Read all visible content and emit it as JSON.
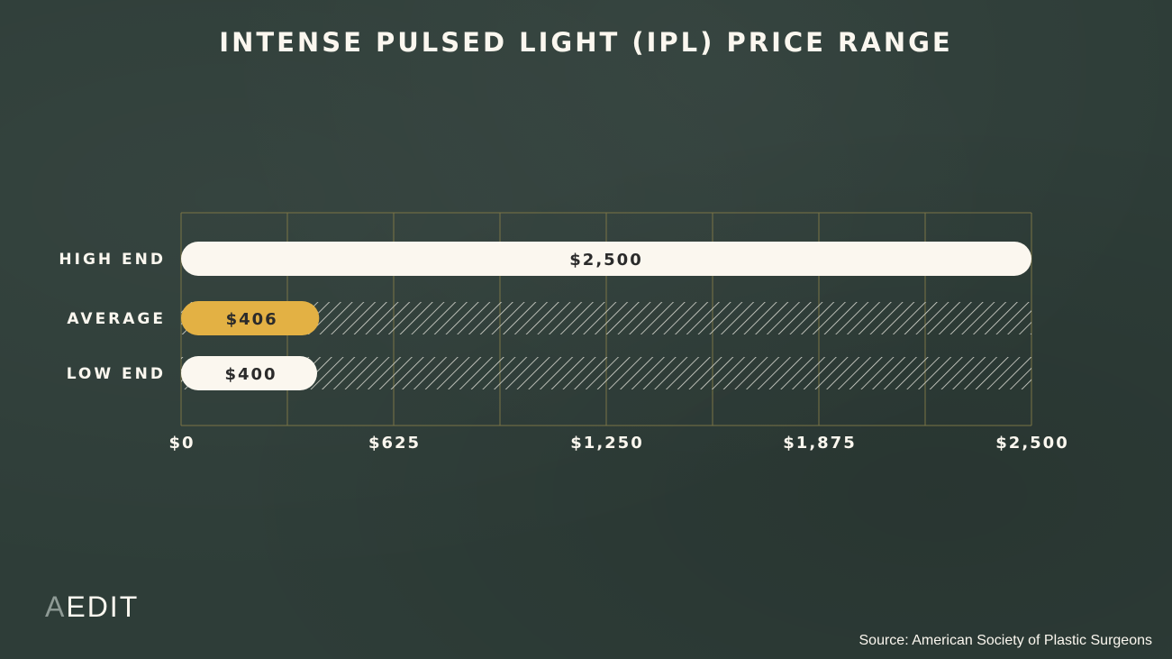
{
  "chart_data": {
    "type": "bar",
    "orientation": "horizontal",
    "title": "INTENSE PULSED LIGHT (IPL) PRICE RANGE",
    "categories": [
      "HIGH END",
      "AVERAGE",
      "LOW END"
    ],
    "values": [
      2500,
      406,
      400
    ],
    "value_labels": [
      "$2,500",
      "$406",
      "$400"
    ],
    "xlim": [
      0,
      2500
    ],
    "x_ticks": [
      0,
      625,
      1250,
      1875,
      2500
    ],
    "x_tick_labels": [
      "$0",
      "$625",
      "$1,250",
      "$1,875",
      "$2,500"
    ],
    "grid": true,
    "xlabel": "",
    "ylabel": "",
    "colors": {
      "bar_default": "#fbf7ef",
      "bar_highlight": "#e3b144",
      "grid": "#7a7446",
      "hatch": "#dcdcd4",
      "background": "#2e3d38"
    },
    "highlight_index": 1
  },
  "brand": {
    "prefix": "A",
    "rest": "EDIT"
  },
  "source": "Source: American Society of Plastic Surgeons"
}
